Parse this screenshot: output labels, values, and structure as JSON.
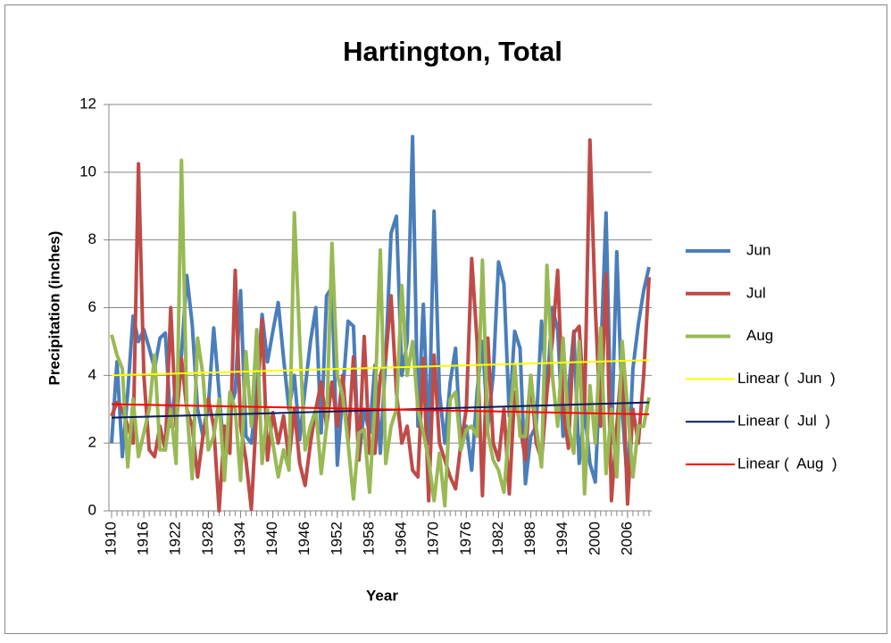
{
  "chart_data": {
    "type": "line",
    "title": "Hartington, Total",
    "y_label": "Precipitation (inches)",
    "x_label": "Year",
    "x": [
      1910,
      1911,
      1912,
      1913,
      1914,
      1915,
      1916,
      1917,
      1918,
      1919,
      1920,
      1921,
      1922,
      1923,
      1924,
      1925,
      1926,
      1927,
      1928,
      1929,
      1930,
      1931,
      1932,
      1933,
      1934,
      1935,
      1936,
      1937,
      1938,
      1939,
      1940,
      1941,
      1942,
      1943,
      1944,
      1945,
      1946,
      1947,
      1948,
      1949,
      1950,
      1951,
      1952,
      1953,
      1954,
      1955,
      1956,
      1957,
      1958,
      1959,
      1960,
      1961,
      1962,
      1963,
      1964,
      1965,
      1966,
      1967,
      1968,
      1969,
      1970,
      1971,
      1972,
      1973,
      1974,
      1975,
      1976,
      1977,
      1978,
      1979,
      1980,
      1981,
      1982,
      1983,
      1984,
      1985,
      1986,
      1987,
      1988,
      1989,
      1990,
      1991,
      1992,
      1993,
      1994,
      1995,
      1996,
      1997,
      1998,
      1999,
      2000,
      2001,
      2002,
      2003,
      2004,
      2005,
      2006,
      2007,
      2008,
      2009,
      2010
    ],
    "xlim": [
      1909.5,
      2010.5
    ],
    "xticks": [
      1910,
      1916,
      1922,
      1928,
      1934,
      1940,
      1946,
      1952,
      1958,
      1964,
      1970,
      1976,
      1982,
      1988,
      1994,
      2000,
      2006
    ],
    "ylim": [
      0,
      12
    ],
    "yticks": [
      0,
      2,
      4,
      6,
      8,
      10,
      12
    ],
    "grid": true,
    "series": [
      {
        "name": "Jun",
        "color": "#4a7ebb",
        "values": [
          2.0,
          4.4,
          1.6,
          3.5,
          5.75,
          5.0,
          5.35,
          4.8,
          4.2,
          5.1,
          5.25,
          2.5,
          3.8,
          4.6,
          6.95,
          5.5,
          3.0,
          2.2,
          3.1,
          5.4,
          3.5,
          1.5,
          3.0,
          3.5,
          6.5,
          2.2,
          2.0,
          3.5,
          5.8,
          4.4,
          5.3,
          6.15,
          4.5,
          3.0,
          4.0,
          2.1,
          3.6,
          5.0,
          6.0,
          2.3,
          6.35,
          6.6,
          1.35,
          3.5,
          5.6,
          5.45,
          1.5,
          3.0,
          2.3,
          4.3,
          1.7,
          4.5,
          8.2,
          8.7,
          4.0,
          5.0,
          11.05,
          2.5,
          6.1,
          2.0,
          8.85,
          3.5,
          2.0,
          3.8,
          4.8,
          1.8,
          2.5,
          1.2,
          3.5,
          5.0,
          2.5,
          4.0,
          7.35,
          6.7,
          2.8,
          5.3,
          4.8,
          0.8,
          2.2,
          2.5,
          5.6,
          3.5,
          6.0,
          5.35,
          2.2,
          3.5,
          5.3,
          1.4,
          3.0,
          1.4,
          0.85,
          4.5,
          8.8,
          2.0,
          7.65,
          3.0,
          0.75,
          4.2,
          5.5,
          6.5,
          7.2
        ]
      },
      {
        "name": "Jul",
        "color": "#be4b48",
        "values": [
          2.8,
          3.2,
          3.0,
          2.5,
          2.0,
          10.25,
          4.0,
          1.8,
          1.6,
          2.5,
          1.8,
          6.0,
          2.5,
          4.5,
          3.0,
          2.5,
          1.0,
          2.2,
          3.3,
          2.5,
          0.0,
          2.5,
          1.7,
          7.1,
          2.5,
          1.5,
          0.05,
          3.0,
          5.65,
          1.5,
          2.9,
          2.0,
          2.8,
          1.5,
          3.0,
          1.4,
          0.75,
          2.0,
          3.0,
          3.8,
          2.5,
          3.8,
          2.5,
          4.0,
          2.0,
          4.55,
          1.5,
          5.15,
          1.7,
          1.7,
          4.0,
          4.5,
          6.35,
          3.5,
          2.0,
          2.5,
          1.2,
          1.0,
          4.5,
          0.3,
          4.6,
          2.0,
          1.5,
          1.0,
          0.65,
          2.0,
          3.0,
          7.45,
          5.0,
          0.45,
          5.1,
          2.0,
          1.5,
          3.0,
          0.5,
          3.5,
          2.5,
          1.5,
          4.0,
          2.0,
          1.5,
          3.5,
          5.0,
          7.1,
          3.0,
          1.85,
          5.25,
          5.45,
          3.0,
          10.95,
          6.0,
          2.5,
          7.0,
          0.3,
          2.5,
          4.55,
          0.2,
          3.0,
          2.0,
          4.0,
          6.9
        ]
      },
      {
        "name": "Aug",
        "color": "#98b954",
        "values": [
          5.2,
          4.6,
          4.2,
          1.3,
          3.3,
          1.6,
          2.3,
          3.0,
          4.6,
          1.8,
          1.8,
          3.0,
          1.4,
          10.35,
          3.0,
          0.95,
          5.1,
          4.0,
          1.8,
          2.2,
          3.3,
          0.9,
          3.5,
          3.0,
          0.9,
          4.7,
          2.5,
          5.35,
          1.4,
          3.0,
          2.0,
          1.0,
          1.8,
          1.2,
          8.8,
          5.0,
          1.8,
          2.5,
          3.0,
          1.1,
          2.5,
          7.9,
          4.0,
          3.4,
          2.0,
          0.35,
          2.3,
          2.4,
          0.55,
          3.2,
          7.7,
          1.4,
          2.5,
          3.0,
          6.65,
          4.0,
          5.0,
          3.0,
          2.3,
          1.5,
          0.3,
          1.7,
          0.15,
          3.3,
          3.5,
          1.8,
          2.4,
          2.5,
          2.2,
          7.4,
          2.3,
          1.5,
          1.2,
          0.55,
          2.5,
          4.3,
          2.2,
          2.2,
          4.0,
          2.5,
          1.3,
          7.25,
          4.0,
          2.5,
          5.1,
          2.5,
          1.7,
          5.0,
          0.5,
          3.7,
          2.0,
          5.4,
          1.1,
          3.0,
          1.0,
          5.0,
          3.0,
          1.0,
          2.5,
          2.5,
          3.35
        ]
      }
    ],
    "trendlines": [
      {
        "name": "Linear (  Jun  )",
        "color": "#ffff00",
        "x": [
          1910,
          2010
        ],
        "values": [
          4.0,
          4.45
        ]
      },
      {
        "name": "Linear (  Jul  )",
        "color": "#0a1a5c",
        "x": [
          1910,
          2010
        ],
        "values": [
          2.75,
          3.2
        ]
      },
      {
        "name": "Linear (  Aug  )",
        "color": "#ff0000",
        "x": [
          1910,
          2010
        ],
        "values": [
          3.15,
          2.85
        ]
      }
    ]
  }
}
